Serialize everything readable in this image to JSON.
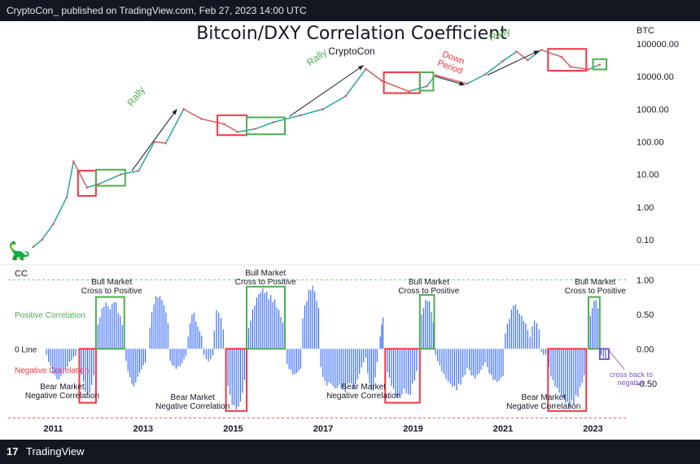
{
  "header": {
    "publish_line": "CryptoCon_ published on TradingView.com, Feb 27, 2023 14:00 UTC"
  },
  "footer": {
    "brand": "TradingView",
    "logo_icon": "tradingview-logo-icon"
  },
  "colors": {
    "price_up": "#26a69a",
    "price_down": "#ef5350",
    "cc_bar": "#2962ff",
    "box_green": "#4caf50",
    "box_red": "#f23645",
    "box_purple": "#7e57c2",
    "pos_text": "#4caf50",
    "neg_text": "#f23645"
  },
  "chart_data": [
    {
      "type": "line",
      "title": "Bitcoin/DXY Correlation Coefficient",
      "subtitle": "CryptoCon",
      "ylabel": "BTC",
      "yscale": "log",
      "ylim": [
        0.03,
        250000
      ],
      "yticks": [
        "100000.00",
        "10000.00",
        "1000.00",
        "100.00",
        "10.00",
        "1.00",
        "0.10"
      ],
      "ytick_values": [
        100000,
        10000,
        1000,
        100,
        10,
        1,
        0.1
      ],
      "x": [
        2010.55,
        2010.75,
        2011.0,
        2011.3,
        2011.45,
        2011.75,
        2012.0,
        2012.5,
        2012.9,
        2013.25,
        2013.5,
        2013.9,
        2014.3,
        2014.8,
        2015.1,
        2015.5,
        2015.9,
        2016.5,
        2017.0,
        2017.5,
        2017.95,
        2018.3,
        2018.9,
        2019.3,
        2019.5,
        2020.2,
        2020.6,
        2021.0,
        2021.3,
        2021.55,
        2021.85,
        2022.3,
        2022.5,
        2022.9,
        2023.15
      ],
      "series": [
        {
          "values": [
            0.06,
            0.1,
            0.3,
            2,
            25,
            4,
            5,
            10,
            13,
            100,
            90,
            1000,
            500,
            350,
            200,
            250,
            400,
            650,
            1000,
            2500,
            17000,
            7500,
            3500,
            5000,
            11000,
            6000,
            11500,
            30000,
            58000,
            32000,
            65000,
            40000,
            20000,
            16500,
            23000
          ]
        }
      ],
      "annotations": [
        {
          "text": "Rally",
          "color": "#4caf50"
        },
        {
          "text": "Rally",
          "color": "#4caf50"
        },
        {
          "text": "Rally",
          "color": "#4caf50"
        },
        {
          "text": "Down Period",
          "color": "#f23645"
        }
      ],
      "boxes": [
        {
          "x0": 2011.55,
          "x1": 2011.95,
          "y0": 2.2,
          "y1": 13,
          "color": "#f23645"
        },
        {
          "x0": 2011.95,
          "x1": 2012.6,
          "y0": 4.5,
          "y1": 14,
          "color": "#4caf50"
        },
        {
          "x0": 2014.65,
          "x1": 2015.3,
          "y0": 160,
          "y1": 650,
          "color": "#f23645"
        },
        {
          "x0": 2015.3,
          "x1": 2016.15,
          "y0": 170,
          "y1": 560,
          "color": "#4caf50"
        },
        {
          "x0": 2018.35,
          "x1": 2019.15,
          "y0": 3100,
          "y1": 13500,
          "color": "#f23645"
        },
        {
          "x0": 2019.15,
          "x1": 2019.45,
          "y0": 3700,
          "y1": 13500,
          "color": "#4caf50"
        },
        {
          "x0": 2022.0,
          "x1": 2022.85,
          "y0": 15000,
          "y1": 70000,
          "color": "#f23645"
        },
        {
          "x0": 2023.0,
          "x1": 2023.3,
          "y0": 16500,
          "y1": 34000,
          "color": "#4caf50"
        }
      ],
      "arrows": [
        {
          "from": [
            2012.75,
            13
          ],
          "to": [
            2013.75,
            1000
          ]
        },
        {
          "from": [
            2016.25,
            600
          ],
          "to": [
            2017.9,
            22000
          ]
        },
        {
          "from": [
            2020.65,
            11000
          ],
          "to": [
            2021.8,
            62000
          ]
        },
        {
          "from": [
            2019.5,
            10000
          ],
          "to": [
            2020.15,
            5500
          ]
        }
      ]
    },
    {
      "type": "bar",
      "title": "CC",
      "ylim": [
        -1.02,
        1.05
      ],
      "yticks": [
        "1.00",
        "0.50",
        "0.00",
        "-0.50"
      ],
      "ytick_values": [
        1.0,
        0.5,
        0.0,
        -0.5
      ],
      "xlabels": [
        "2011",
        "2013",
        "2015",
        "2017",
        "2019",
        "2021",
        "2023"
      ],
      "xlabel_values": [
        2011,
        2013,
        2015,
        2017,
        2019,
        2021,
        2023
      ],
      "xlim": [
        2010.45,
        2023.75
      ],
      "segments": [
        {
          "x0": 2010.85,
          "x1": 2011.5,
          "values": [
            -0.1,
            -0.35,
            -0.48,
            -0.35,
            -0.2,
            -0.1
          ]
        },
        {
          "x0": 2011.58,
          "x1": 2011.9,
          "values": [
            -0.2,
            -0.45,
            -0.62,
            -0.72,
            -0.6,
            -0.4
          ]
        },
        {
          "x0": 2011.95,
          "x1": 2012.58,
          "values": [
            0.2,
            0.55,
            0.7,
            0.6,
            0.75,
            0.5,
            0.3
          ]
        },
        {
          "x0": 2012.62,
          "x1": 2013.05,
          "values": [
            -0.2,
            -0.45,
            -0.58,
            -0.42,
            -0.3,
            -0.2
          ]
        },
        {
          "x0": 2013.15,
          "x1": 2013.55,
          "values": [
            0.35,
            0.75,
            0.8,
            0.7,
            0.4
          ]
        },
        {
          "x0": 2013.6,
          "x1": 2013.95,
          "values": [
            -0.2,
            -0.3,
            -0.25,
            -0.1
          ]
        },
        {
          "x0": 2014.0,
          "x1": 2014.3,
          "values": [
            0.2,
            0.6,
            0.35,
            0.2
          ]
        },
        {
          "x0": 2014.35,
          "x1": 2014.55,
          "values": [
            -0.1,
            -0.2,
            -0.1
          ]
        },
        {
          "x0": 2014.58,
          "x1": 2014.78,
          "values": [
            0.3,
            0.65,
            0.5,
            0.3
          ]
        },
        {
          "x0": 2014.84,
          "x1": 2015.3,
          "values": [
            -0.3,
            -0.7,
            -0.85,
            -0.9,
            -0.85,
            -0.6,
            -0.3
          ]
        },
        {
          "x0": 2015.3,
          "x1": 2016.15,
          "values": [
            0.15,
            0.55,
            0.8,
            0.9,
            0.8,
            0.75,
            0.55,
            0.3
          ]
        },
        {
          "x0": 2016.2,
          "x1": 2016.5,
          "values": [
            -0.25,
            -0.4,
            -0.3
          ]
        },
        {
          "x0": 2016.55,
          "x1": 2016.9,
          "values": [
            0.5,
            0.85,
            0.95,
            0.6
          ]
        },
        {
          "x0": 2016.95,
          "x1": 2017.9,
          "values": [
            -0.3,
            -0.55,
            -0.5,
            -0.6,
            -0.55,
            -0.65,
            -0.5,
            -0.6,
            -0.4,
            -0.2
          ]
        },
        {
          "x0": 2017.95,
          "x1": 2018.2,
          "values": [
            -0.15,
            -0.55,
            -0.65,
            -0.2
          ]
        },
        {
          "x0": 2018.27,
          "x1": 2018.33,
          "values": [
            0.2,
            0.5
          ]
        },
        {
          "x0": 2018.38,
          "x1": 2019.08,
          "values": [
            -0.2,
            -0.45,
            -0.6,
            -0.75,
            -0.7,
            -0.6,
            -0.75,
            -0.55,
            -0.35
          ]
        },
        {
          "x0": 2019.15,
          "x1": 2019.45,
          "values": [
            0.35,
            0.7,
            0.75,
            0.4
          ]
        },
        {
          "x0": 2019.5,
          "x1": 2020.2,
          "values": [
            -0.1,
            -0.3,
            -0.45,
            -0.55,
            -0.6,
            -0.5,
            -0.3
          ]
        },
        {
          "x0": 2020.25,
          "x1": 2020.6,
          "values": [
            -0.35,
            -0.45,
            -0.35,
            -0.2
          ]
        },
        {
          "x0": 2020.65,
          "x1": 2021.0,
          "values": [
            -0.3,
            -0.45,
            -0.5,
            -0.4
          ]
        },
        {
          "x0": 2021.05,
          "x1": 2021.55,
          "values": [
            0.25,
            0.5,
            0.7,
            0.55,
            0.45,
            0.3
          ]
        },
        {
          "x0": 2021.6,
          "x1": 2021.8,
          "values": [
            0.2,
            0.45,
            0.3
          ]
        },
        {
          "x0": 2021.85,
          "x1": 2022.0,
          "values": [
            -0.05,
            -0.1,
            -0.08
          ]
        },
        {
          "x0": 2022.02,
          "x1": 2022.85,
          "values": [
            -0.3,
            -0.5,
            -0.6,
            -0.7,
            -0.8,
            -0.85,
            -0.8,
            -0.7,
            -0.5,
            -0.3
          ]
        },
        {
          "x0": 2022.9,
          "x1": 2023.15,
          "values": [
            0.3,
            0.65,
            0.75,
            0.45
          ]
        },
        {
          "x0": 2023.18,
          "x1": 2023.28,
          "values": [
            -0.1,
            -0.15
          ]
        }
      ],
      "boxes": [
        {
          "x0": 2011.58,
          "x1": 2011.95,
          "y0": -0.78,
          "y1": 0.0,
          "color": "#f23645"
        },
        {
          "x0": 2011.95,
          "x1": 2012.58,
          "y0": 0.0,
          "y1": 0.75,
          "color": "#4caf50"
        },
        {
          "x0": 2014.84,
          "x1": 2015.3,
          "y0": -0.9,
          "y1": 0.0,
          "color": "#f23645"
        },
        {
          "x0": 2015.3,
          "x1": 2016.15,
          "y0": 0.0,
          "y1": 0.9,
          "color": "#4caf50"
        },
        {
          "x0": 2018.38,
          "x1": 2019.15,
          "y0": -0.78,
          "y1": 0.0,
          "color": "#f23645"
        },
        {
          "x0": 2019.15,
          "x1": 2019.47,
          "y0": 0.0,
          "y1": 0.78,
          "color": "#4caf50"
        },
        {
          "x0": 2022.0,
          "x1": 2022.85,
          "y0": -0.9,
          "y1": 0.0,
          "color": "#f23645"
        },
        {
          "x0": 2022.9,
          "x1": 2023.15,
          "y0": 0.0,
          "y1": 0.75,
          "color": "#4caf50"
        },
        {
          "x0": 2023.15,
          "x1": 2023.35,
          "y0": -0.15,
          "y1": 0.0,
          "color": "#7e57c2"
        }
      ],
      "reference_lines": [
        {
          "y": 1.0,
          "color": "#4caf50"
        },
        {
          "y": -1.0,
          "color": "#f23645"
        }
      ],
      "side_labels": [
        {
          "text": "Positive Correlation",
          "color": "#4caf50"
        },
        {
          "text": "0 Line",
          "color": "#131722"
        },
        {
          "text": "Negative Correlation",
          "color": "#f23645"
        }
      ],
      "annotations": [
        {
          "text": "Bull Market\nCross to Positive"
        },
        {
          "text": "Bull Market\nCross to Positive"
        },
        {
          "text": "Bull Market\nCross to Positive"
        },
        {
          "text": "Bull Market\nCross to Positive"
        },
        {
          "text": "Bear Market\nNegative Correlation"
        },
        {
          "text": "Bear Market\nNegative Correlation"
        },
        {
          "text": "Bear Market\nNegative Correlation"
        },
        {
          "text": "Bear Market\nNegative Correlation"
        },
        {
          "text": "cross back to\nnegative",
          "color": "#7e57c2"
        }
      ]
    }
  ]
}
